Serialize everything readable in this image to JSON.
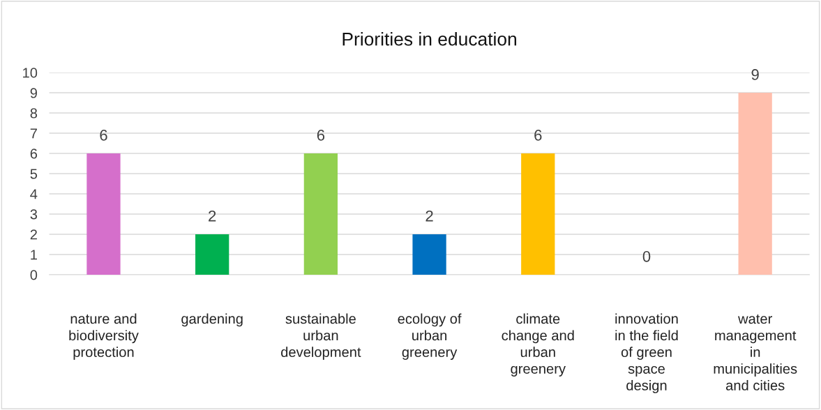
{
  "chart_data": {
    "type": "bar",
    "title": "Priorities in education",
    "categories": [
      "nature and\nbiodiversity\nprotection",
      "gardening",
      "sustainable\nurban\ndevelopment",
      "ecology of\nurban\ngreenery",
      "climate\nchange and\nurban\ngreenery",
      "innovation\nin the field\nof green\nspace\ndesign",
      "water\nmanagement\nin\nmunicipalities\nand cities"
    ],
    "values": [
      6,
      2,
      6,
      2,
      6,
      0,
      9
    ],
    "colors": [
      "#d56fcb",
      "#00b050",
      "#92d050",
      "#0070c0",
      "#ffc000",
      "#a5a5a5",
      "#ffbfad"
    ],
    "ylim": [
      0,
      10
    ],
    "yticks": [
      0,
      1,
      2,
      3,
      4,
      5,
      6,
      7,
      8,
      9,
      10
    ],
    "grid": "y",
    "data_labels": true
  }
}
